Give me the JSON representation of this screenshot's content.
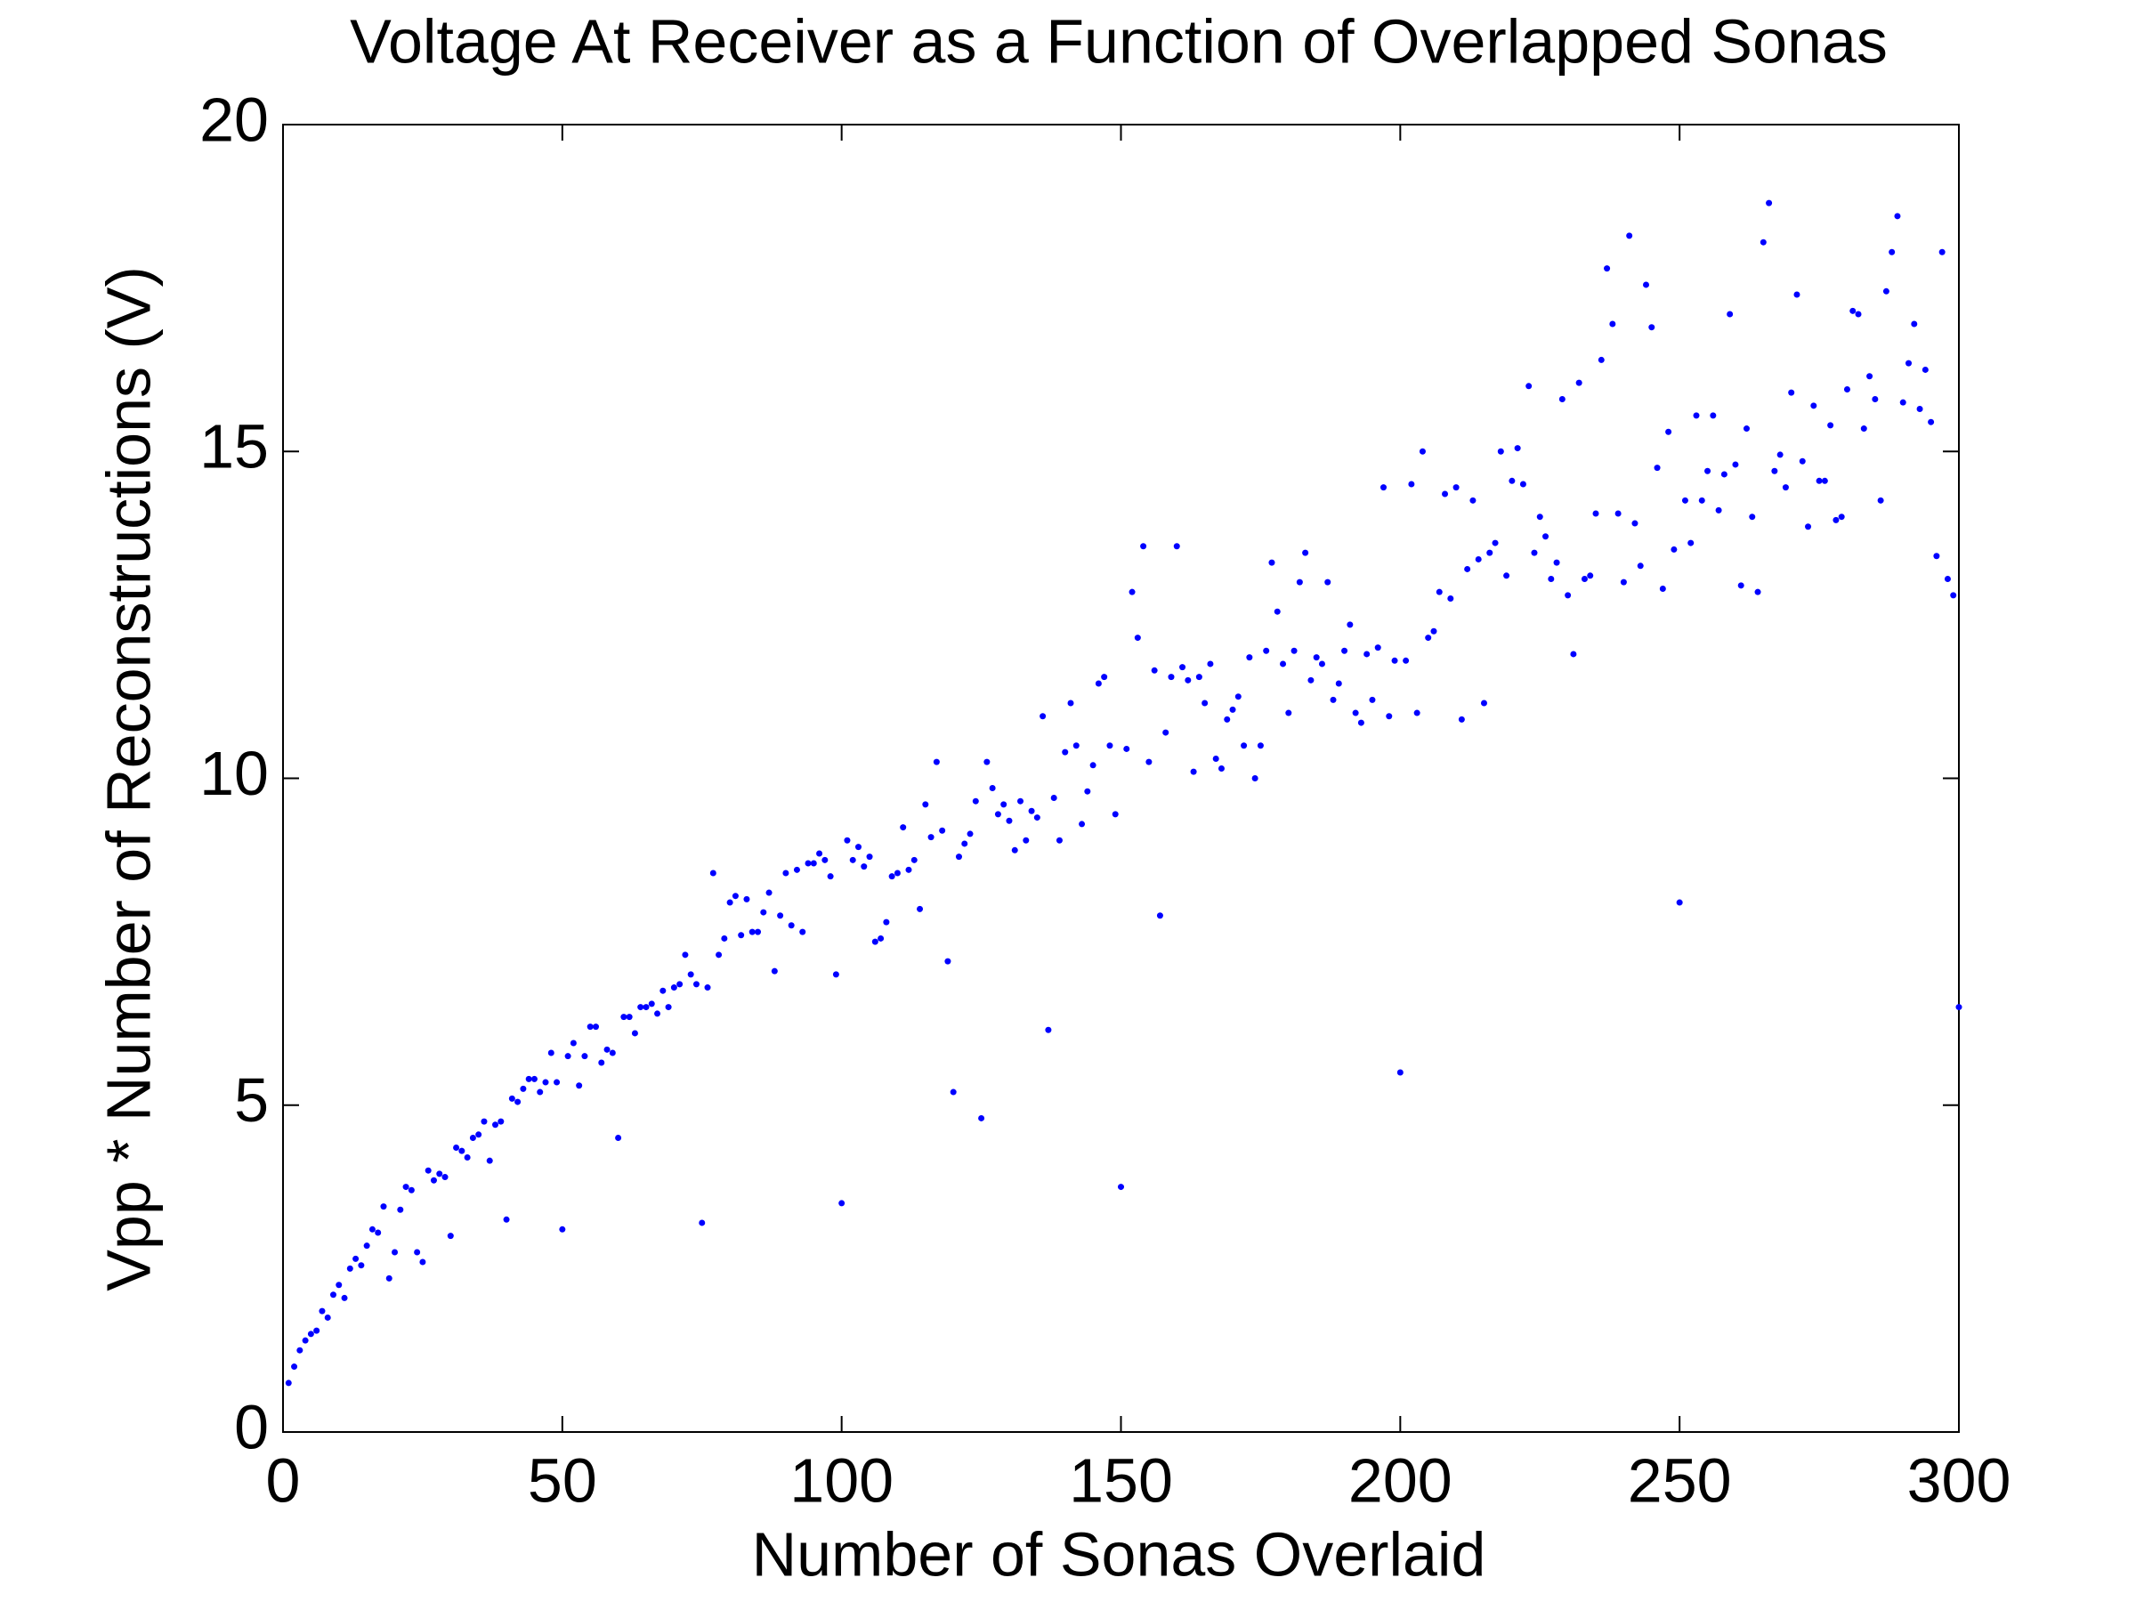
{
  "chart_data": {
    "type": "scatter",
    "title": "Voltage At Receiver as a Function of Overlapped Sonas",
    "xlabel": "Number of Sonas Overlaid",
    "ylabel": "Vpp * Number of Reconstructions (V)",
    "color": "#0000ff",
    "xlim": [
      0,
      300
    ],
    "ylim": [
      0,
      20
    ],
    "xticks": [
      0,
      50,
      100,
      150,
      200,
      250,
      300
    ],
    "yticks": [
      0,
      5,
      10,
      15,
      20
    ],
    "grid": false,
    "x": [
      1,
      2,
      3,
      4,
      5,
      6,
      7,
      8,
      9,
      10,
      11,
      12,
      13,
      14,
      15,
      16,
      17,
      18,
      19,
      20,
      21,
      22,
      23,
      24,
      25,
      26,
      27,
      28,
      29,
      30,
      31,
      32,
      33,
      34,
      35,
      36,
      37,
      38,
      39,
      40,
      41,
      42,
      43,
      44,
      45,
      46,
      47,
      48,
      49,
      50,
      51,
      52,
      53,
      54,
      55,
      56,
      57,
      58,
      59,
      60,
      61,
      62,
      63,
      64,
      65,
      66,
      67,
      68,
      69,
      70,
      71,
      72,
      73,
      74,
      75,
      76,
      77,
      78,
      79,
      80,
      81,
      82,
      83,
      84,
      85,
      86,
      87,
      88,
      89,
      90,
      91,
      92,
      93,
      94,
      95,
      96,
      97,
      98,
      99,
      100,
      101,
      102,
      103,
      104,
      105,
      106,
      107,
      108,
      109,
      110,
      111,
      112,
      113,
      114,
      115,
      116,
      117,
      118,
      119,
      120,
      121,
      122,
      123,
      124,
      125,
      126,
      127,
      128,
      129,
      130,
      131,
      132,
      133,
      134,
      135,
      136,
      137,
      138,
      139,
      140,
      141,
      142,
      143,
      144,
      145,
      146,
      147,
      148,
      149,
      150,
      151,
      152,
      153,
      154,
      155,
      156,
      157,
      158,
      159,
      160,
      161,
      162,
      163,
      164,
      165,
      166,
      167,
      168,
      169,
      170,
      171,
      172,
      173,
      174,
      175,
      176,
      177,
      178,
      179,
      180,
      181,
      182,
      183,
      184,
      185,
      186,
      187,
      188,
      189,
      190,
      191,
      192,
      193,
      194,
      195,
      196,
      197,
      198,
      199,
      200,
      201,
      202,
      203,
      204,
      205,
      206,
      207,
      208,
      209,
      210,
      211,
      212,
      213,
      214,
      215,
      216,
      217,
      218,
      219,
      220,
      221,
      222,
      223,
      224,
      225,
      226,
      227,
      228,
      229,
      230,
      231,
      232,
      233,
      234,
      235,
      236,
      237,
      238,
      239,
      240,
      241,
      242,
      243,
      244,
      245,
      246,
      247,
      248,
      249,
      250,
      251,
      252,
      253,
      254,
      255,
      256,
      257,
      258,
      259,
      260,
      261,
      262,
      263,
      264,
      265,
      266,
      267,
      268,
      269,
      270,
      271,
      272,
      273,
      274,
      275,
      276,
      277,
      278,
      279,
      280,
      281,
      282,
      283,
      284,
      285,
      286,
      287,
      288,
      289,
      290,
      291,
      292,
      293,
      294,
      295,
      296,
      297,
      298,
      299,
      300
    ],
    "values": [
      0.75,
      1.0,
      1.25,
      1.4,
      1.5,
      1.55,
      1.85,
      1.75,
      2.1,
      2.25,
      2.05,
      2.5,
      2.65,
      2.55,
      2.85,
      3.1,
      3.05,
      3.45,
      2.35,
      2.75,
      3.4,
      3.75,
      3.7,
      2.75,
      2.6,
      4.0,
      3.85,
      3.95,
      3.9,
      3.0,
      4.35,
      4.3,
      4.2,
      4.5,
      4.55,
      4.75,
      4.15,
      4.7,
      4.75,
      3.25,
      5.1,
      5.05,
      5.25,
      5.4,
      5.4,
      5.2,
      5.35,
      5.8,
      5.35,
      3.1,
      5.75,
      5.95,
      5.3,
      5.75,
      6.2,
      6.2,
      5.65,
      5.85,
      5.8,
      4.5,
      6.35,
      6.35,
      6.1,
      6.5,
      6.5,
      6.55,
      6.4,
      6.75,
      6.5,
      6.8,
      6.85,
      7.3,
      7.0,
      6.85,
      3.2,
      6.8,
      8.55,
      7.3,
      7.55,
      8.1,
      8.2,
      7.6,
      8.15,
      7.65,
      7.65,
      7.95,
      8.25,
      7.05,
      7.9,
      8.55,
      7.75,
      8.6,
      7.65,
      8.7,
      8.7,
      8.85,
      8.75,
      8.5,
      7.0,
      3.5,
      9.05,
      8.75,
      8.95,
      8.65,
      8.8,
      7.5,
      7.55,
      7.8,
      8.5,
      8.55,
      9.25,
      8.6,
      8.75,
      8.0,
      9.6,
      9.1,
      10.25,
      9.2,
      7.2,
      5.2,
      8.8,
      9.0,
      9.15,
      9.65,
      4.8,
      10.25,
      9.85,
      9.45,
      9.6,
      9.35,
      8.9,
      9.65,
      9.05,
      9.5,
      9.4,
      10.95,
      6.15,
      9.7,
      9.05,
      10.4,
      11.15,
      10.5,
      9.3,
      9.8,
      10.2,
      11.45,
      11.55,
      10.5,
      9.45,
      3.75,
      10.45,
      12.85,
      12.15,
      13.55,
      10.25,
      11.65,
      7.9,
      10.7,
      11.55,
      13.55,
      11.7,
      11.5,
      10.1,
      11.55,
      11.15,
      11.75,
      10.3,
      10.15,
      10.9,
      11.05,
      11.25,
      10.5,
      11.85,
      10.0,
      10.5,
      11.95,
      13.3,
      12.55,
      11.75,
      11.0,
      11.95,
      13.0,
      13.45,
      11.5,
      11.85,
      11.75,
      13.0,
      11.2,
      11.45,
      11.95,
      12.35,
      11.0,
      10.85,
      11.9,
      11.2,
      12.0,
      14.45,
      10.95,
      11.8,
      5.5,
      11.8,
      14.5,
      11.0,
      15.0,
      12.15,
      12.25,
      12.85,
      14.35,
      12.75,
      14.45,
      10.9,
      13.2,
      14.25,
      13.35,
      11.15,
      13.45,
      13.6,
      15.0,
      13.1,
      14.55,
      15.05,
      14.5,
      16.0,
      13.45,
      14.0,
      13.7,
      13.05,
      13.3,
      15.8,
      12.8,
      11.9,
      16.05,
      13.05,
      13.1,
      14.05,
      16.4,
      17.8,
      16.95,
      14.05,
      13.0,
      18.3,
      13.9,
      13.25,
      17.55,
      16.9,
      14.75,
      12.9,
      15.3,
      13.5,
      8.1,
      14.25,
      13.6,
      15.55,
      14.25,
      14.7,
      15.55,
      14.1,
      14.65,
      17.1,
      14.8,
      12.95,
      15.35,
      14.0,
      12.85,
      18.2,
      18.8,
      14.7,
      14.95,
      14.45,
      15.9,
      17.4,
      14.85,
      13.85,
      15.7,
      14.55,
      14.55,
      15.4,
      13.95,
      14.0,
      15.95,
      17.15,
      17.1,
      15.35,
      16.15,
      15.8,
      14.25,
      17.45,
      18.05,
      18.6,
      15.75,
      16.35,
      16.95,
      15.65,
      16.25,
      15.45,
      13.4,
      18.05,
      13.05,
      12.8,
      6.5
    ]
  }
}
